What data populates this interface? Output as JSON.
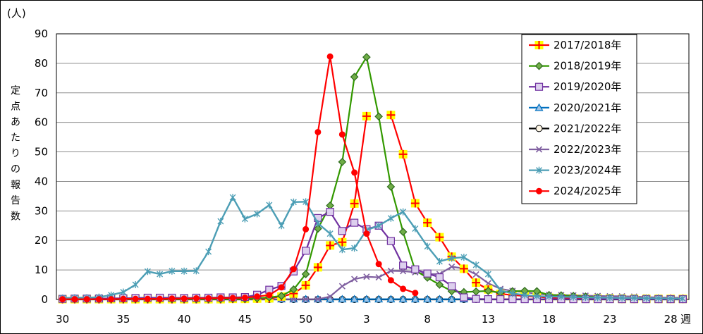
{
  "chart_data": {
    "type": "line",
    "unit_label": "(人)",
    "ylabel": "定点あたりの報告数",
    "xlabel_unit": "週",
    "ylim": [
      0,
      90
    ],
    "y_ticks": [
      0,
      10,
      20,
      30,
      40,
      50,
      60,
      70,
      80,
      90
    ],
    "weeks": [
      30,
      31,
      32,
      33,
      34,
      35,
      36,
      37,
      38,
      39,
      40,
      41,
      42,
      43,
      44,
      45,
      46,
      47,
      48,
      49,
      50,
      51,
      52,
      1,
      2,
      3,
      4,
      5,
      6,
      7,
      8,
      9,
      10,
      11,
      12,
      13,
      14,
      15,
      16,
      17,
      18,
      19,
      20,
      21,
      22,
      23,
      24,
      25,
      26,
      27,
      28,
      29
    ],
    "x_tick_labels": [
      "30",
      "35",
      "40",
      "45",
      "50",
      "3",
      "8",
      "13",
      "18",
      "23",
      "28"
    ],
    "x_tick_indices": [
      0,
      5,
      10,
      15,
      20,
      25,
      30,
      35,
      40,
      45,
      50
    ],
    "grid": true,
    "legend_position": "top-right",
    "series": [
      {
        "name": "2017/2018年",
        "color": "#ff0000",
        "marker": "plus",
        "values": [
          0.1,
          0.1,
          0.1,
          0.1,
          0.1,
          0.1,
          0.1,
          0.1,
          0.1,
          0.1,
          0.1,
          0.1,
          0.1,
          0.1,
          0.2,
          0.2,
          0.3,
          0.4,
          1.0,
          2.0,
          4.8,
          10.9,
          18.3,
          19.4,
          32.5,
          62.1,
          null,
          62.5,
          49.2,
          32.6,
          26.0,
          21.1,
          14.5,
          10.4,
          5.7,
          3.4,
          1.9,
          1.5,
          1.2,
          0.9,
          0.6,
          0.5,
          0.4,
          0.3,
          0.3,
          0.3,
          0.2,
          0.2,
          0.2,
          0.2,
          0.2,
          0.2
        ]
      },
      {
        "name": "2018/2019年",
        "color": "#339900",
        "marker": "diamond",
        "values": [
          0.1,
          0.1,
          0.1,
          0.1,
          0.1,
          0.1,
          0.1,
          0.1,
          0.1,
          0.1,
          0.1,
          0.1,
          0.1,
          0.1,
          0.2,
          0.2,
          0.4,
          0.7,
          1.2,
          3.4,
          8.6,
          24.0,
          31.8,
          46.6,
          75.4,
          82.1,
          62.0,
          38.2,
          22.9,
          9.8,
          7.4,
          5.0,
          2.8,
          2.5,
          2.7,
          2.9,
          2.3,
          2.8,
          2.9,
          2.8,
          1.5,
          1.4,
          1.2,
          1.0,
          0.7,
          0.5,
          0.4,
          0.3,
          0.3,
          0.3,
          0.2,
          0.2
        ]
      },
      {
        "name": "2019/2020年",
        "color": "#7030a0",
        "marker": "square",
        "values": [
          0.2,
          0.3,
          0.3,
          0.3,
          0.4,
          0.4,
          0.5,
          0.6,
          0.6,
          0.6,
          0.5,
          0.6,
          0.6,
          0.7,
          0.7,
          0.8,
          1.6,
          3.3,
          4.6,
          9.5,
          16.5,
          27.6,
          29.7,
          23.2,
          26.0,
          23.8,
          25.0,
          19.8,
          11.5,
          10.2,
          8.8,
          7.5,
          4.5,
          0.7,
          0.2,
          0.1,
          0.1,
          0.1,
          0.1,
          0.1,
          0.1,
          0.1,
          0.1,
          0.1,
          0.1,
          0.1,
          0.1,
          0.1,
          0.1,
          0.1,
          0.1,
          0.1
        ]
      },
      {
        "name": "2020/2021年",
        "color": "#0070c0",
        "marker": "triangle",
        "values": [
          0.1,
          0.1,
          0.1,
          0.1,
          0.1,
          0.1,
          0.1,
          0.1,
          0.1,
          0.1,
          0.1,
          0.1,
          0.1,
          0.1,
          0.1,
          0.1,
          0.1,
          0.1,
          0.1,
          0.1,
          0.1,
          0.1,
          0.1,
          0.1,
          0.1,
          0.1,
          0.1,
          0.1,
          0.1,
          0.1,
          0.1,
          0.1,
          0.1,
          0.1,
          0.1,
          0.1,
          0.1,
          0.1,
          0.1,
          0.1,
          0.1,
          0.1,
          0.1,
          0.1,
          0.1,
          0.1,
          0.1,
          0.1,
          0.1,
          0.1,
          0.1,
          0.1
        ]
      },
      {
        "name": "2021/2022年",
        "color": "#000000",
        "marker": "circle-open",
        "values": [
          0,
          0,
          0,
          0,
          0,
          0,
          0,
          0,
          0,
          0,
          0,
          0,
          0,
          0,
          0,
          0,
          0,
          0,
          0,
          0,
          0,
          0,
          0,
          0,
          0,
          0,
          0,
          0,
          0,
          0,
          0,
          0,
          0,
          0,
          0,
          0,
          0,
          0,
          0,
          0,
          0,
          0,
          0,
          0,
          0,
          0,
          0,
          0,
          0,
          0,
          0,
          0
        ]
      },
      {
        "name": "2022/2023年",
        "color": "#7f5fa0",
        "marker": "x",
        "values": [
          0.1,
          0.1,
          0.1,
          0.1,
          0.1,
          0.1,
          0.1,
          0.1,
          0.1,
          0.1,
          0.1,
          0.1,
          0.1,
          0.1,
          0.1,
          0.1,
          0.1,
          0.1,
          0.1,
          0.1,
          0.1,
          0.1,
          1.0,
          4.5,
          6.9,
          7.7,
          7.5,
          9.7,
          9.6,
          9.2,
          8.6,
          8.6,
          11.1,
          10.5,
          8.5,
          5.5,
          3.6,
          2.9,
          2.5,
          1.9,
          1.6,
          1.5,
          1.4,
          1.3,
          1.2,
          1.1,
          1.1,
          1.0,
          0.8,
          0.7,
          0.6,
          0.6
        ]
      },
      {
        "name": "2023/2024年",
        "color": "#4c9eb5",
        "marker": "star",
        "values": [
          0.5,
          0.6,
          0.6,
          0.8,
          1.5,
          2.5,
          5.0,
          9.5,
          8.6,
          9.6,
          9.6,
          9.7,
          16.2,
          26.5,
          34.6,
          27.3,
          29.0,
          32.0,
          25.0,
          33.0,
          33.1,
          25.8,
          22.3,
          16.9,
          17.4,
          23.5,
          25.0,
          27.5,
          29.7,
          24.0,
          18.0,
          12.9,
          14.0,
          14.3,
          11.7,
          8.6,
          3.1,
          2.0,
          1.5,
          1.1,
          1.0,
          0.9,
          0.8,
          0.7,
          0.6,
          0.6,
          0.5,
          0.5,
          0.4,
          0.4,
          0.3,
          0.3
        ]
      },
      {
        "name": "2024/2025年",
        "color": "#ff0000",
        "marker": "dot",
        "values": [
          0.1,
          0.1,
          0.1,
          0.1,
          0.1,
          0.2,
          0.2,
          0.2,
          0.2,
          0.3,
          0.3,
          0.4,
          0.4,
          0.5,
          0.5,
          0.6,
          1.0,
          1.5,
          4.1,
          10.3,
          23.8,
          56.7,
          82.3,
          55.9,
          43.0,
          22.3,
          12.0,
          6.5,
          3.6,
          2.2,
          null,
          null,
          null,
          null,
          null,
          null,
          null,
          null,
          null,
          null,
          null,
          null,
          null,
          null,
          null,
          null,
          null,
          null,
          null,
          null,
          null,
          null
        ]
      }
    ]
  }
}
